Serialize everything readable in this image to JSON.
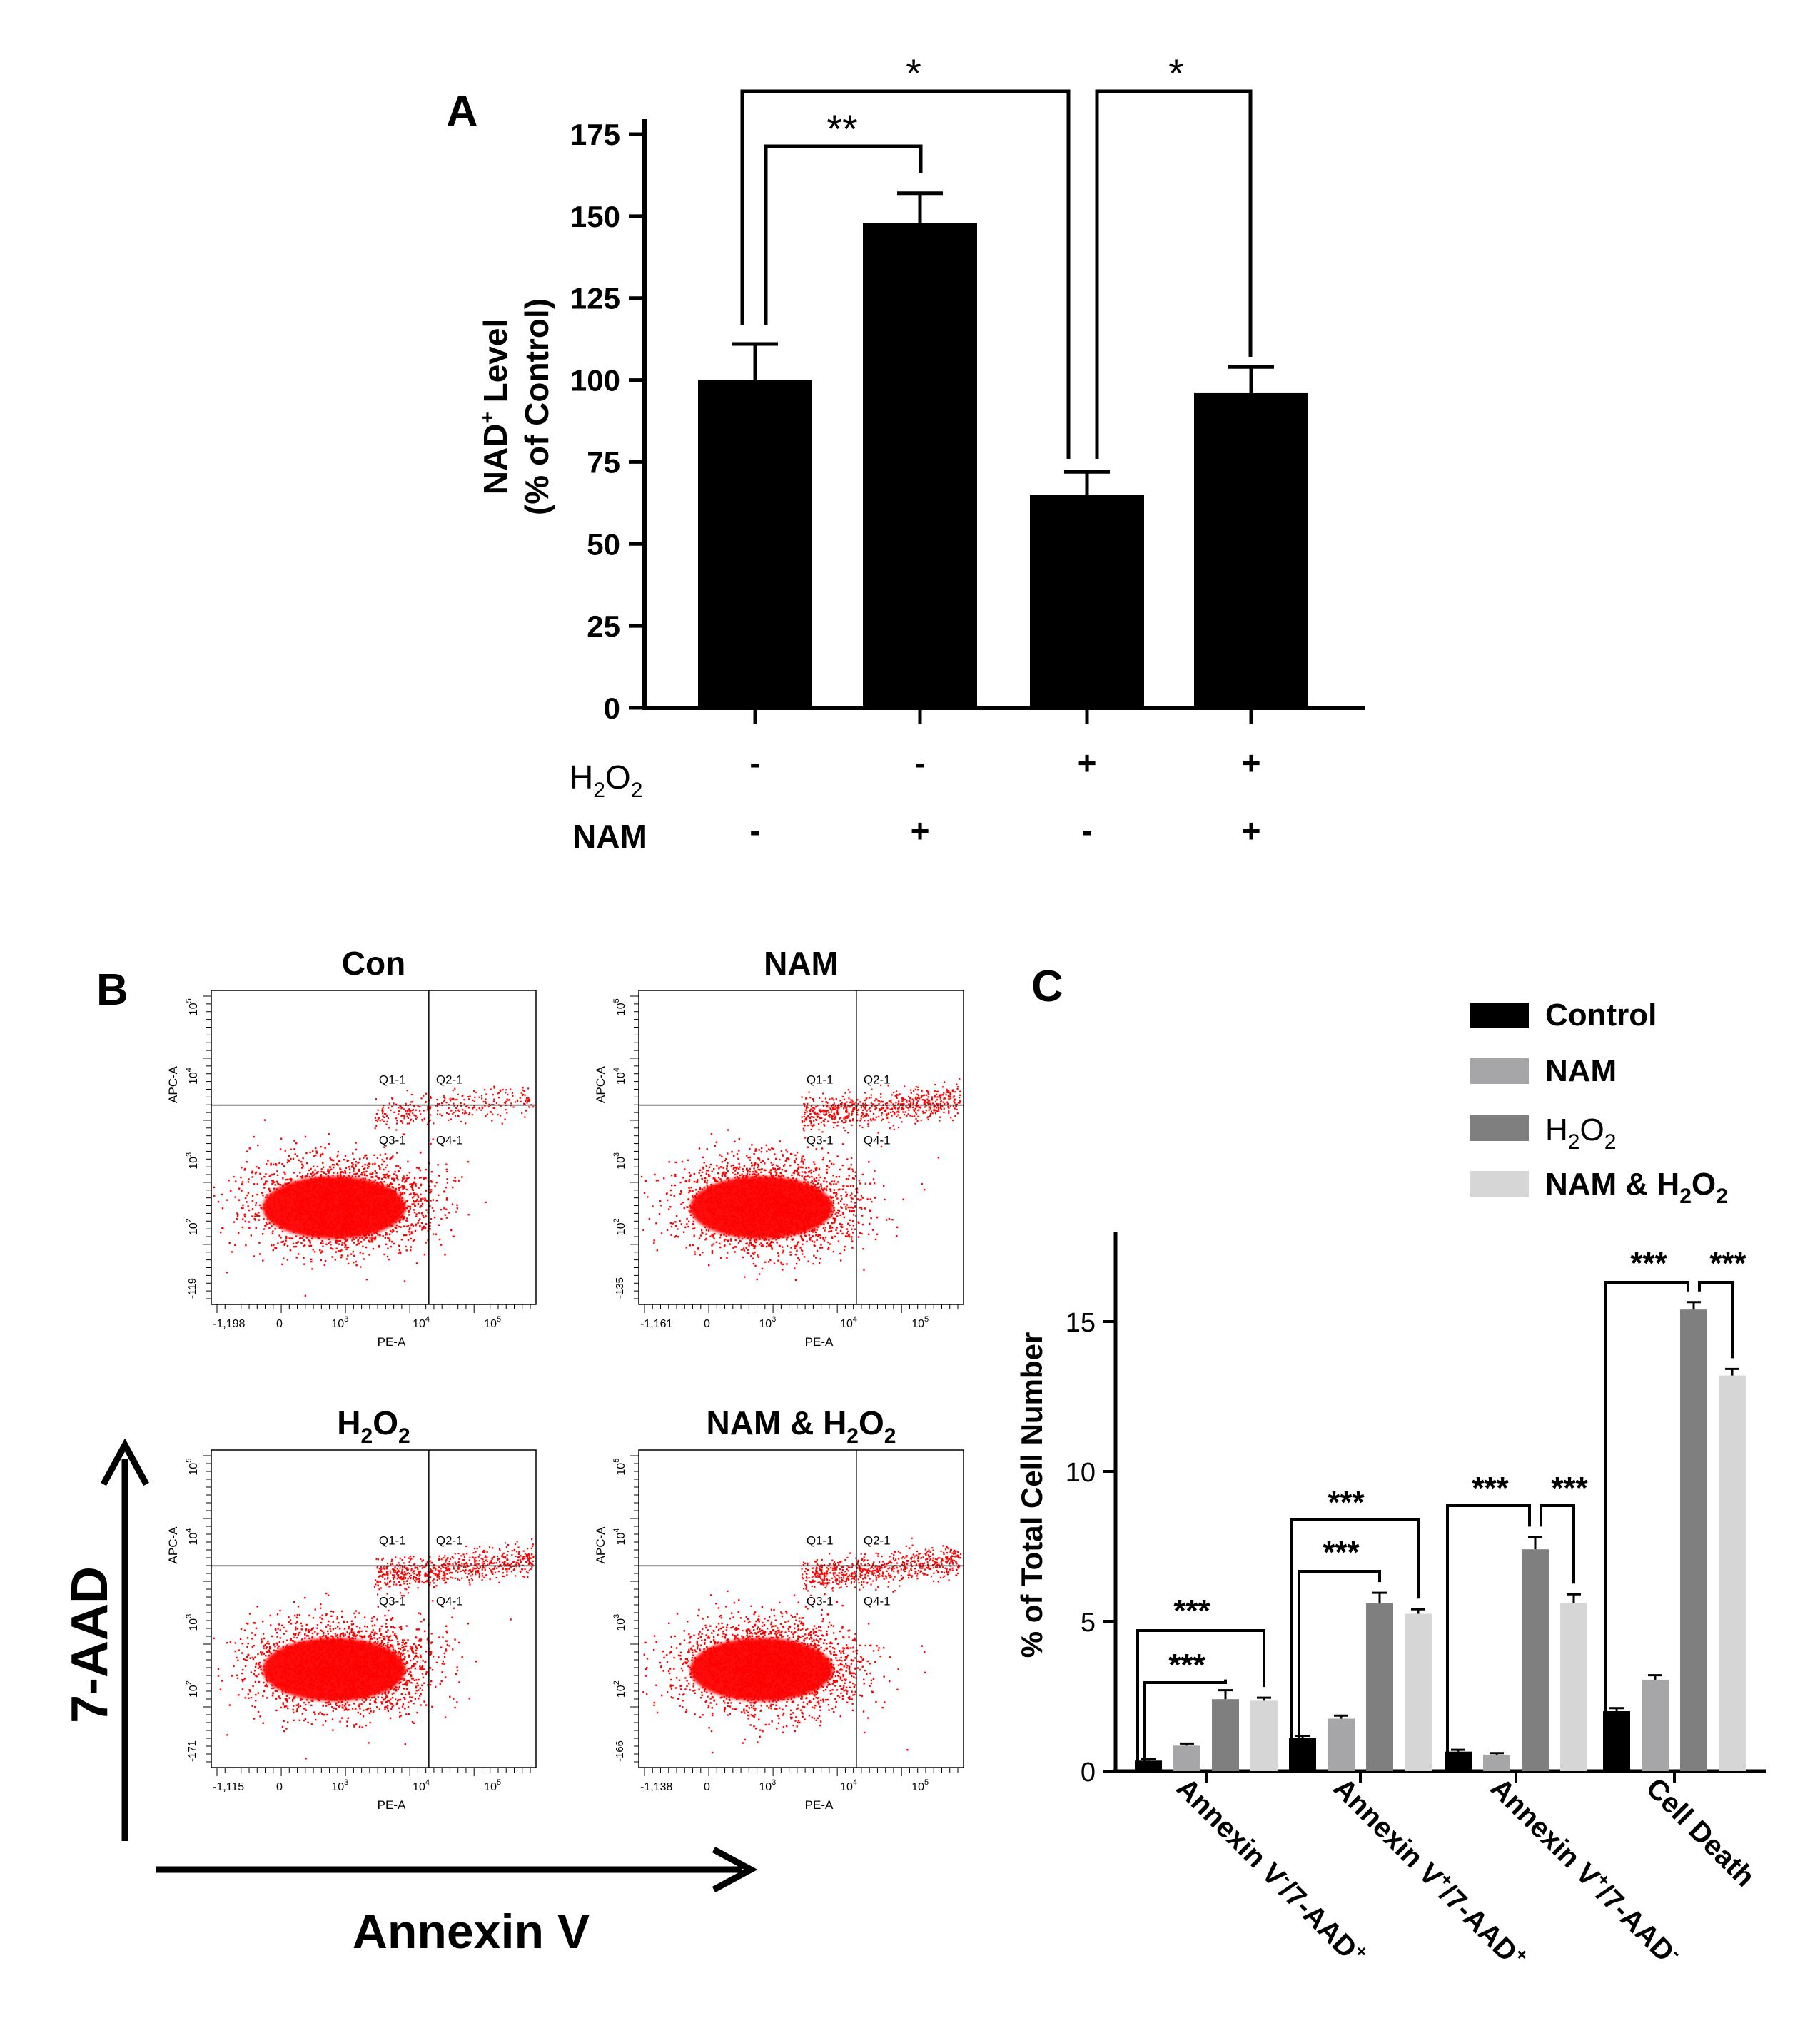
{
  "panel_labels": {
    "a": "A",
    "b": "B",
    "c": "C"
  },
  "chart_data": [
    {
      "panel": "A",
      "type": "bar",
      "ylabel_line1": "NAD",
      "ylabel_sup": "+",
      "ylabel_line1_rest": " Level",
      "ylabel_line2": "(% of Control)",
      "ylim": [
        0,
        175
      ],
      "yticks": [
        "0",
        "25",
        "50",
        "75",
        "100",
        "125",
        "150",
        "175"
      ],
      "values": [
        100,
        148,
        65,
        96
      ],
      "errors": [
        11,
        9,
        7,
        8
      ],
      "bar_color": "#000000",
      "row_labels": {
        "h2o2": "H",
        "h2o2_sub1": "2",
        "h2o2_mid": "O",
        "h2o2_sub2": "2",
        "nam": "NAM"
      },
      "h2o2_signs": [
        "-",
        "-",
        "+",
        "+"
      ],
      "nam_signs": [
        "-",
        "+",
        "-",
        "+"
      ],
      "significance": [
        "**",
        "*",
        "*"
      ]
    },
    {
      "panel": "C",
      "type": "bar",
      "ylabel": "% of Total Cell Number",
      "ylim": [
        0,
        18
      ],
      "yticks": [
        "0",
        "5",
        "10",
        "15"
      ],
      "legend": [
        "Control",
        "NAM",
        "H2O2",
        "NAM & H2O2"
      ],
      "legend_parts": {
        "control": "Control",
        "nam": "NAM",
        "h2o2_h": "H",
        "h2o2_sub1": "2",
        "h2o2_o": "O",
        "h2o2_sub2": "2",
        "namh2o2_prefix": "NAM & H",
        "namh2o2_sub1": "2",
        "namh2o2_o": "O",
        "namh2o2_sub2": "2"
      },
      "colors": [
        "#000000",
        "#a6a6a8",
        "#7f7f7f",
        "#d6d6d6"
      ],
      "categories": [
        {
          "pre": "Annexin V",
          "sup1": "-",
          "mid": "/7-AAD",
          "sup2": "+"
        },
        {
          "pre": "Annexin V",
          "sup1": "+",
          "mid": "/7-AAD",
          "sup2": "+"
        },
        {
          "pre": "Annexin V",
          "sup1": "+",
          "mid": "/7-AAD",
          "sup2": "-"
        },
        {
          "pre": "Cell Death",
          "sup1": "",
          "mid": "",
          "sup2": ""
        }
      ],
      "series": [
        {
          "name": "Control",
          "values": [
            0.35,
            1.1,
            0.65,
            2.0
          ],
          "errors": [
            0.05,
            0.08,
            0.06,
            0.1
          ]
        },
        {
          "name": "NAM",
          "values": [
            0.85,
            1.75,
            0.55,
            3.05
          ],
          "errors": [
            0.07,
            0.1,
            0.05,
            0.15
          ]
        },
        {
          "name": "H2O2",
          "values": [
            2.4,
            5.6,
            7.4,
            15.4
          ],
          "errors": [
            0.3,
            0.35,
            0.4,
            0.25
          ]
        },
        {
          "name": "NAM & H2O2",
          "values": [
            2.35,
            5.25,
            5.6,
            13.2
          ],
          "errors": [
            0.1,
            0.15,
            0.3,
            0.22
          ]
        }
      ],
      "significance": [
        "***",
        "***",
        "***",
        "***",
        "***",
        "***",
        "***",
        "***"
      ]
    }
  ],
  "flow_plots": [
    {
      "title": "Con",
      "xmin": "-1,198",
      "ymin": "-119"
    },
    {
      "title": "NAM",
      "xmin": "-1,161",
      "ymin": "-135"
    },
    {
      "title_h": "H",
      "title_sub1": "2",
      "title_o": "O",
      "title_sub2": "2",
      "xmin": "-1,115",
      "ymin": "-171"
    },
    {
      "title_prefix": "NAM & H",
      "title_sub1": "2",
      "title_o": "O",
      "title_sub2": "2",
      "xmin": "-1,138",
      "ymin": "-166"
    }
  ],
  "flow_common": {
    "xaxis": "PE-A",
    "yaxis": "APC-A",
    "x0": "0",
    "x10": "10",
    "x3": "3",
    "x4": "4",
    "x5": "5",
    "y10": "10",
    "y2": "2",
    "y3": "3",
    "y4": "4",
    "y5": "5",
    "q1": "Q1-1",
    "q2": "Q2-1",
    "q3": "Q3-1",
    "q4": "Q4-1",
    "dot_color": "#ff0000"
  },
  "axis_labels_b": {
    "y": "7-AAD",
    "x": "Annexin V"
  }
}
